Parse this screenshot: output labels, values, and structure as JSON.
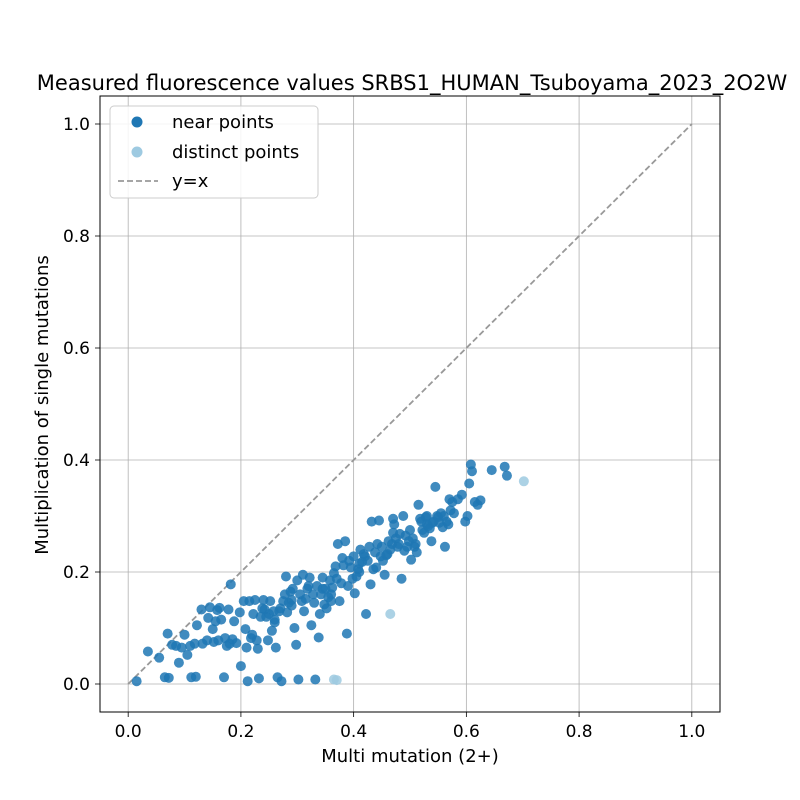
{
  "chart_data": {
    "type": "scatter",
    "title": "Measured fluorescence values SRBS1_HUMAN_Tsuboyama_2023_2O2W",
    "xlabel": "Multi mutation (2+)",
    "ylabel": "Multiplication of single mutations",
    "xlim": [
      -0.05,
      1.05
    ],
    "ylim": [
      -0.05,
      1.05
    ],
    "xticks": [
      "0.0",
      "0.2",
      "0.4",
      "0.6",
      "0.8",
      "1.0"
    ],
    "yticks": [
      "0.0",
      "0.2",
      "0.4",
      "0.6",
      "0.8",
      "1.0"
    ],
    "grid": true,
    "legend_position": "top-left",
    "colors": {
      "near": "#1f77b4",
      "distinct": "#9ecae1",
      "reference": "#999999"
    },
    "reference_line": {
      "name": "y=x",
      "x": [
        0,
        1
      ],
      "y": [
        0,
        1
      ]
    },
    "series": [
      {
        "name": "near points",
        "points": [
          [
            0.015,
            0.005
          ],
          [
            0.035,
            0.058
          ],
          [
            0.055,
            0.047
          ],
          [
            0.065,
            0.012
          ],
          [
            0.072,
            0.011
          ],
          [
            0.07,
            0.09
          ],
          [
            0.078,
            0.07
          ],
          [
            0.085,
            0.068
          ],
          [
            0.09,
            0.038
          ],
          [
            0.095,
            0.065
          ],
          [
            0.1,
            0.088
          ],
          [
            0.105,
            0.052
          ],
          [
            0.11,
            0.068
          ],
          [
            0.112,
            0.012
          ],
          [
            0.12,
            0.013
          ],
          [
            0.118,
            0.072
          ],
          [
            0.122,
            0.105
          ],
          [
            0.13,
            0.133
          ],
          [
            0.132,
            0.072
          ],
          [
            0.14,
            0.078
          ],
          [
            0.142,
            0.118
          ],
          [
            0.145,
            0.137
          ],
          [
            0.15,
            0.098
          ],
          [
            0.152,
            0.075
          ],
          [
            0.155,
            0.112
          ],
          [
            0.158,
            0.132
          ],
          [
            0.16,
            0.078
          ],
          [
            0.162,
            0.136
          ],
          [
            0.165,
            0.115
          ],
          [
            0.17,
            0.012
          ],
          [
            0.172,
            0.082
          ],
          [
            0.175,
            0.068
          ],
          [
            0.178,
            0.133
          ],
          [
            0.18,
            0.072
          ],
          [
            0.182,
            0.178
          ],
          [
            0.185,
            0.08
          ],
          [
            0.188,
            0.112
          ],
          [
            0.192,
            0.073
          ],
          [
            0.198,
            0.128
          ],
          [
            0.2,
            0.032
          ],
          [
            0.205,
            0.148
          ],
          [
            0.208,
            0.098
          ],
          [
            0.21,
            0.065
          ],
          [
            0.212,
            0.005
          ],
          [
            0.215,
            0.148
          ],
          [
            0.218,
            0.082
          ],
          [
            0.22,
            0.088
          ],
          [
            0.222,
            0.125
          ],
          [
            0.225,
            0.15
          ],
          [
            0.228,
            0.078
          ],
          [
            0.23,
            0.063
          ],
          [
            0.232,
            0.01
          ],
          [
            0.235,
            0.12
          ],
          [
            0.238,
            0.135
          ],
          [
            0.24,
            0.15
          ],
          [
            0.242,
            0.133
          ],
          [
            0.245,
            0.12
          ],
          [
            0.248,
            0.078
          ],
          [
            0.25,
            0.125
          ],
          [
            0.252,
            0.148
          ],
          [
            0.255,
            0.095
          ],
          [
            0.258,
            0.13
          ],
          [
            0.26,
            0.11
          ],
          [
            0.262,
            0.065
          ],
          [
            0.265,
            0.012
          ],
          [
            0.268,
            0.13
          ],
          [
            0.27,
            0.135
          ],
          [
            0.272,
            0.005
          ],
          [
            0.275,
            0.148
          ],
          [
            0.278,
            0.16
          ],
          [
            0.28,
            0.192
          ],
          [
            0.282,
            0.128
          ],
          [
            0.285,
            0.145
          ],
          [
            0.288,
            0.165
          ],
          [
            0.29,
            0.15
          ],
          [
            0.292,
            0.17
          ],
          [
            0.295,
            0.1
          ],
          [
            0.298,
            0.07
          ],
          [
            0.3,
            0.185
          ],
          [
            0.302,
            0.008
          ],
          [
            0.305,
            0.16
          ],
          [
            0.308,
            0.148
          ],
          [
            0.31,
            0.195
          ],
          [
            0.312,
            0.13
          ],
          [
            0.315,
            0.152
          ],
          [
            0.318,
            0.17
          ],
          [
            0.32,
            0.175
          ],
          [
            0.322,
            0.19
          ],
          [
            0.325,
            0.105
          ],
          [
            0.328,
            0.16
          ],
          [
            0.33,
            0.145
          ],
          [
            0.332,
            0.008
          ],
          [
            0.335,
            0.175
          ],
          [
            0.338,
            0.083
          ],
          [
            0.34,
            0.125
          ],
          [
            0.342,
            0.16
          ],
          [
            0.345,
            0.19
          ],
          [
            0.348,
            0.142
          ],
          [
            0.35,
            0.17
          ],
          [
            0.352,
            0.135
          ],
          [
            0.355,
            0.155
          ],
          [
            0.358,
            0.185
          ],
          [
            0.36,
            0.148
          ],
          [
            0.362,
            0.172
          ],
          [
            0.365,
            0.198
          ],
          [
            0.368,
            0.21
          ],
          [
            0.37,
            0.188
          ],
          [
            0.372,
            0.25
          ],
          [
            0.375,
            0.148
          ],
          [
            0.378,
            0.18
          ],
          [
            0.38,
            0.225
          ],
          [
            0.382,
            0.212
          ],
          [
            0.385,
            0.255
          ],
          [
            0.388,
            0.09
          ],
          [
            0.39,
            0.175
          ],
          [
            0.392,
            0.22
          ],
          [
            0.395,
            0.208
          ],
          [
            0.398,
            0.188
          ],
          [
            0.4,
            0.228
          ],
          [
            0.402,
            0.162
          ],
          [
            0.405,
            0.192
          ],
          [
            0.408,
            0.205
          ],
          [
            0.41,
            0.215
          ],
          [
            0.412,
            0.24
          ],
          [
            0.415,
            0.218
          ],
          [
            0.418,
            0.232
          ],
          [
            0.42,
            0.228
          ],
          [
            0.422,
            0.125
          ],
          [
            0.425,
            0.22
          ],
          [
            0.428,
            0.245
          ],
          [
            0.43,
            0.178
          ],
          [
            0.432,
            0.29
          ],
          [
            0.435,
            0.205
          ],
          [
            0.438,
            0.235
          ],
          [
            0.44,
            0.208
          ],
          [
            0.442,
            0.25
          ],
          [
            0.445,
            0.292
          ],
          [
            0.448,
            0.228
          ],
          [
            0.45,
            0.245
          ],
          [
            0.452,
            0.22
          ],
          [
            0.455,
            0.195
          ],
          [
            0.458,
            0.23
          ],
          [
            0.46,
            0.232
          ],
          [
            0.462,
            0.255
          ],
          [
            0.465,
            0.24
          ],
          [
            0.468,
            0.25
          ],
          [
            0.47,
            0.295
          ],
          [
            0.472,
            0.285
          ],
          [
            0.475,
            0.26
          ],
          [
            0.478,
            0.245
          ],
          [
            0.48,
            0.25
          ],
          [
            0.482,
            0.268
          ],
          [
            0.485,
            0.188
          ],
          [
            0.488,
            0.3
          ],
          [
            0.49,
            0.238
          ],
          [
            0.492,
            0.265
          ],
          [
            0.495,
            0.245
          ],
          [
            0.498,
            0.255
          ],
          [
            0.5,
            0.275
          ],
          [
            0.502,
            0.222
          ],
          [
            0.505,
            0.26
          ],
          [
            0.508,
            0.245
          ],
          [
            0.51,
            0.25
          ],
          [
            0.512,
            0.235
          ],
          [
            0.515,
            0.32
          ],
          [
            0.518,
            0.295
          ],
          [
            0.52,
            0.29
          ],
          [
            0.522,
            0.275
          ],
          [
            0.525,
            0.27
          ],
          [
            0.528,
            0.298
          ],
          [
            0.53,
            0.3
          ],
          [
            0.532,
            0.282
          ],
          [
            0.535,
            0.278
          ],
          [
            0.538,
            0.255
          ],
          [
            0.54,
            0.288
          ],
          [
            0.542,
            0.29
          ],
          [
            0.545,
            0.352
          ],
          [
            0.548,
            0.3
          ],
          [
            0.55,
            0.298
          ],
          [
            0.552,
            0.288
          ],
          [
            0.555,
            0.305
          ],
          [
            0.558,
            0.28
          ],
          [
            0.56,
            0.3
          ],
          [
            0.562,
            0.245
          ],
          [
            0.565,
            0.29
          ],
          [
            0.568,
            0.285
          ],
          [
            0.57,
            0.33
          ],
          [
            0.572,
            0.31
          ],
          [
            0.575,
            0.325
          ],
          [
            0.578,
            0.305
          ],
          [
            0.585,
            0.33
          ],
          [
            0.592,
            0.338
          ],
          [
            0.598,
            0.29
          ],
          [
            0.602,
            0.3
          ],
          [
            0.608,
            0.392
          ],
          [
            0.605,
            0.358
          ],
          [
            0.61,
            0.38
          ],
          [
            0.615,
            0.325
          ],
          [
            0.62,
            0.32
          ],
          [
            0.625,
            0.328
          ],
          [
            0.645,
            0.382
          ],
          [
            0.668,
            0.388
          ],
          [
            0.672,
            0.372
          ],
          [
            0.26,
            0.115
          ],
          [
            0.36,
            0.16
          ],
          [
            0.29,
            0.14
          ],
          [
            0.345,
            0.17
          ],
          [
            0.41,
            0.2
          ],
          [
            0.47,
            0.27
          ],
          [
            0.53,
            0.285
          ]
        ]
      },
      {
        "name": "distinct points",
        "points": [
          [
            0.365,
            0.008
          ],
          [
            0.37,
            0.007
          ],
          [
            0.465,
            0.125
          ],
          [
            0.702,
            0.362
          ]
        ]
      }
    ]
  }
}
